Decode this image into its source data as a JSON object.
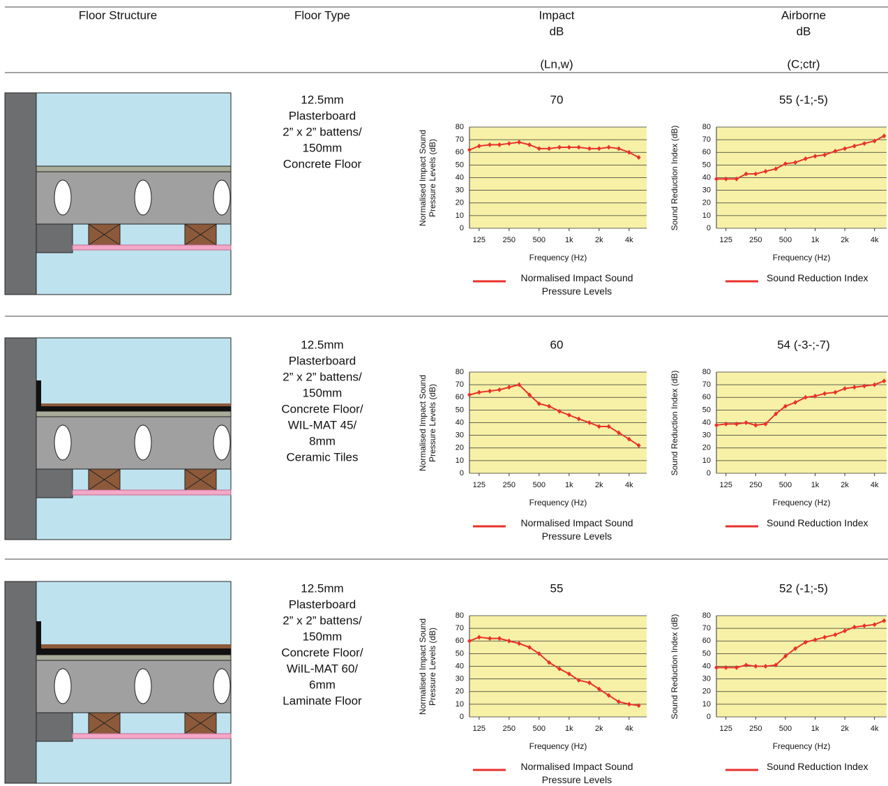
{
  "header": {
    "structure": "Floor Structure",
    "type": "Floor Type",
    "impact": [
      "Impact",
      "dB",
      "(Ln,w)"
    ],
    "airborne": [
      "Airborne",
      "dB",
      "(C;ctr)"
    ]
  },
  "rows": [
    {
      "floor_type": [
        "12.5mm",
        "Plasterboard",
        "2” x 2” battens/",
        "150mm",
        "Concrete Floor"
      ],
      "impact_rating": 70,
      "airborne_rating": "55 (-1;-5)"
    },
    {
      "floor_type": [
        "12.5mm",
        "Plasterboard",
        "2” x 2” battens/",
        "150mm",
        "Concrete Floor/",
        "WIL-MAT 45/",
        "8mm",
        "Ceramic Tiles"
      ],
      "impact_rating": 60,
      "airborne_rating": "54 (-3-;-7)"
    },
    {
      "floor_type": [
        "12.5mm",
        "Plasterboard",
        "2” x 2” battens/",
        "150mm",
        "Concrete Floor/",
        "WiIL-MAT 60/",
        "6mm",
        "Laminate Floor"
      ],
      "impact_rating": 55,
      "airborne_rating": "52 (-1;-5)"
    }
  ],
  "chart_data": [
    {
      "type": "line",
      "xlabel": "Frequency (Hz)",
      "ylabel": "Normalised Impact Sound Pressure Levels (dB)",
      "xscale": "log",
      "grid": true,
      "background": "#f6f1a6",
      "x": [
        100,
        125,
        160,
        200,
        250,
        315,
        400,
        500,
        630,
        800,
        1000,
        1250,
        1600,
        2000,
        2500,
        3150,
        4000,
        5000
      ],
      "xlim": [
        100,
        6000
      ],
      "xticks": [
        125,
        250,
        500,
        {
          "value": 1000,
          "label": "1k"
        },
        {
          "value": 2000,
          "label": "2k"
        },
        {
          "value": 4000,
          "label": "4k"
        }
      ],
      "ylim": [
        0,
        80
      ],
      "yticks": [
        0,
        10,
        20,
        30,
        40,
        50,
        60,
        70,
        80
      ],
      "series": [
        {
          "name": "Normalised Impact Sound Pressure Levels",
          "color": "#e8322c",
          "values": [
            62,
            65,
            66,
            66,
            67,
            68,
            66,
            63,
            63,
            64,
            64,
            64,
            63,
            63,
            64,
            63,
            60,
            56
          ]
        }
      ]
    },
    {
      "type": "line",
      "xlabel": "Frequency (Hz)",
      "ylabel": "Sound Reduction Index (dB)",
      "xscale": "log",
      "grid": true,
      "background": "#f6f1a6",
      "x": [
        100,
        125,
        160,
        200,
        250,
        315,
        400,
        500,
        630,
        800,
        1000,
        1250,
        1600,
        2000,
        2500,
        3150,
        4000,
        5000
      ],
      "xlim": [
        100,
        5300
      ],
      "xticks": [
        125,
        250,
        500,
        {
          "value": 1000,
          "label": "1k"
        },
        {
          "value": 2000,
          "label": "2k"
        },
        {
          "value": 4000,
          "label": "4k"
        }
      ],
      "ylim": [
        0,
        80
      ],
      "yticks": [
        0,
        10,
        20,
        30,
        40,
        50,
        60,
        70,
        80
      ],
      "series": [
        {
          "name": "Sound Reduction Index",
          "color": "#e8322c",
          "values": [
            39,
            39,
            39,
            43,
            43,
            45,
            47,
            51,
            52,
            55,
            57,
            58,
            61,
            63,
            65,
            67,
            69,
            73
          ]
        }
      ]
    },
    {
      "type": "line",
      "xlabel": "Frequency (Hz)",
      "ylabel": "Normalised Impact Sound Pressure Levels (dB)",
      "xscale": "log",
      "grid": true,
      "background": "#f6f1a6",
      "x": [
        100,
        125,
        160,
        200,
        250,
        315,
        400,
        500,
        630,
        800,
        1000,
        1250,
        1600,
        2000,
        2500,
        3150,
        4000,
        5000
      ],
      "xlim": [
        100,
        6000
      ],
      "xticks": [
        125,
        250,
        500,
        {
          "value": 1000,
          "label": "1k"
        },
        {
          "value": 2000,
          "label": "2k"
        },
        {
          "value": 4000,
          "label": "4k"
        }
      ],
      "ylim": [
        0,
        80
      ],
      "yticks": [
        0,
        10,
        20,
        30,
        40,
        50,
        60,
        70,
        80
      ],
      "series": [
        {
          "name": "Normalised Impact Sound Pressure Levels",
          "color": "#e8322c",
          "values": [
            62,
            64,
            65,
            66,
            68,
            70,
            62,
            55,
            53,
            49,
            46,
            43,
            40,
            37,
            37,
            32,
            27,
            22
          ]
        }
      ]
    },
    {
      "type": "line",
      "xlabel": "Frequency (Hz)",
      "ylabel": "Sound Reduction Index (dB)",
      "xscale": "log",
      "grid": true,
      "background": "#f6f1a6",
      "x": [
        100,
        125,
        160,
        200,
        250,
        315,
        400,
        500,
        630,
        800,
        1000,
        1250,
        1600,
        2000,
        2500,
        3150,
        4000,
        5000
      ],
      "xlim": [
        100,
        5300
      ],
      "xticks": [
        125,
        250,
        500,
        {
          "value": 1000,
          "label": "1k"
        },
        {
          "value": 2000,
          "label": "2k"
        },
        {
          "value": 4000,
          "label": "4k"
        }
      ],
      "ylim": [
        0,
        80
      ],
      "yticks": [
        0,
        10,
        20,
        30,
        40,
        50,
        60,
        70,
        80
      ],
      "series": [
        {
          "name": "Sound Reduction Index",
          "color": "#e8322c",
          "values": [
            38,
            39,
            39,
            40,
            38,
            39,
            47,
            53,
            56,
            60,
            61,
            63,
            64,
            67,
            68,
            69,
            70,
            73
          ]
        }
      ]
    },
    {
      "type": "line",
      "xlabel": "Frequency (Hz)",
      "ylabel": "Normalised Impact Sound Pressure Levels (dB)",
      "xscale": "log",
      "grid": true,
      "background": "#f6f1a6",
      "x": [
        100,
        125,
        160,
        200,
        250,
        315,
        400,
        500,
        630,
        800,
        1000,
        1250,
        1600,
        2000,
        2500,
        3150,
        4000,
        5000
      ],
      "xlim": [
        100,
        6000
      ],
      "xticks": [
        125,
        250,
        500,
        {
          "value": 1000,
          "label": "1k"
        },
        {
          "value": 2000,
          "label": "2k"
        },
        {
          "value": 4000,
          "label": "4k"
        }
      ],
      "ylim": [
        0,
        80
      ],
      "yticks": [
        0,
        10,
        20,
        30,
        40,
        50,
        60,
        70,
        80
      ],
      "series": [
        {
          "name": "Normalised Impact Sound Pressure Levels",
          "color": "#e8322c",
          "values": [
            60,
            63,
            62,
            62,
            60,
            58,
            55,
            50,
            43,
            38,
            34,
            29,
            27,
            22,
            17,
            12,
            10,
            9
          ]
        }
      ]
    },
    {
      "type": "line",
      "xlabel": "Frequency (Hz)",
      "ylabel": "Sound Reduction Index (dB)",
      "xscale": "log",
      "grid": true,
      "background": "#f6f1a6",
      "x": [
        100,
        125,
        160,
        200,
        250,
        315,
        400,
        500,
        630,
        800,
        1000,
        1250,
        1600,
        2000,
        2500,
        3150,
        4000,
        5000
      ],
      "xlim": [
        100,
        5300
      ],
      "xticks": [
        125,
        250,
        500,
        {
          "value": 1000,
          "label": "1k"
        },
        {
          "value": 2000,
          "label": "2k"
        },
        {
          "value": 4000,
          "label": "4k"
        }
      ],
      "ylim": [
        0,
        80
      ],
      "yticks": [
        0,
        10,
        20,
        30,
        40,
        50,
        60,
        70,
        80
      ],
      "series": [
        {
          "name": "Sound Reduction Index",
          "color": "#e8322c",
          "values": [
            39,
            39,
            39,
            41,
            40,
            40,
            41,
            48,
            54,
            59,
            61,
            63,
            65,
            68,
            71,
            72,
            73,
            76
          ]
        }
      ]
    }
  ]
}
